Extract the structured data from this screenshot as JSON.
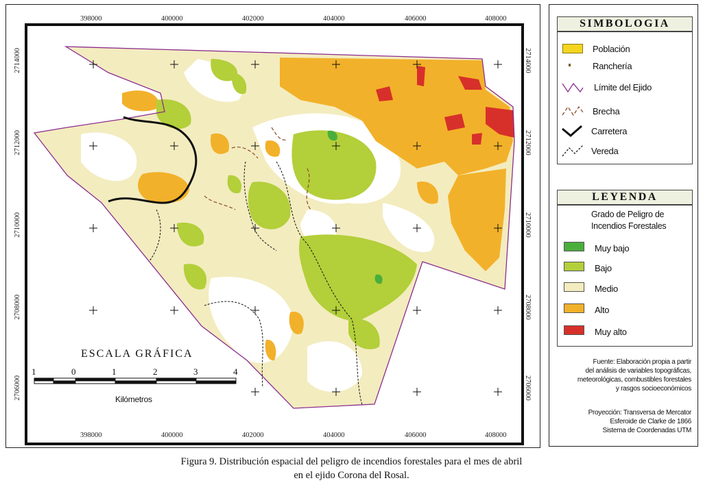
{
  "map": {
    "top_x_labels": [
      "398000",
      "400000",
      "402000",
      "404000",
      "406000",
      "408000"
    ],
    "bottom_x_labels": [
      "398000",
      "400000",
      "402000",
      "404000",
      "406000",
      "408000"
    ],
    "left_y_labels": [
      "2714000",
      "2712000",
      "2710000",
      "2708000",
      "2706000"
    ],
    "right_y_labels": [
      "2714000",
      "2712000",
      "2710000",
      "2708000",
      "2706000"
    ],
    "scale": {
      "title": "ESCALA GRÁFICA",
      "numbers": [
        "1",
        "0",
        "1",
        "2",
        "3",
        "4"
      ],
      "unit": "Kilómetros"
    }
  },
  "simbologia": {
    "title": "SIMBOLOGIA",
    "items": [
      {
        "label": "Población",
        "icon": "yellow-box"
      },
      {
        "label": "Ranchería",
        "icon": "dot"
      },
      {
        "label": "Límite del Ejido",
        "icon": "purple-zigzag"
      },
      {
        "label": "Brecha",
        "icon": "brown-dashed"
      },
      {
        "label": "Carretera",
        "icon": "black-thick"
      },
      {
        "label": "Vereda",
        "icon": "black-dashed"
      }
    ]
  },
  "leyenda": {
    "title": "LEYENDA",
    "subtitle_line1": "Grado de Peligro de",
    "subtitle_line2": "Incendios Forestales",
    "classes": [
      {
        "label": "Muy bajo",
        "color": "#4aae3c"
      },
      {
        "label": "Bajo",
        "color": "#b3cf3a"
      },
      {
        "label": "Medio",
        "color": "#f3ecbf"
      },
      {
        "label": "Alto",
        "color": "#f2b12a"
      },
      {
        "label": "Muy alto",
        "color": "#d7302a"
      }
    ]
  },
  "source": {
    "l1": "Fuente: Elaboración propia a partir",
    "l2": "del análisis de variables topográficas,",
    "l3": "meteorológicas, combustibles forestales",
    "l4": "y rasgos socioeconómicos"
  },
  "projection": {
    "l1": "Proyección: Transversa de Mercator",
    "l2": "Esferoide de Clarke de 1866",
    "l3": "Sistema de Coordenadas UTM"
  },
  "caption": {
    "line1": "Figura 9. Distribución espacial del peligro de incendios forestales para el mes de abril",
    "line2": "en el ejido Corona del Rosal."
  }
}
